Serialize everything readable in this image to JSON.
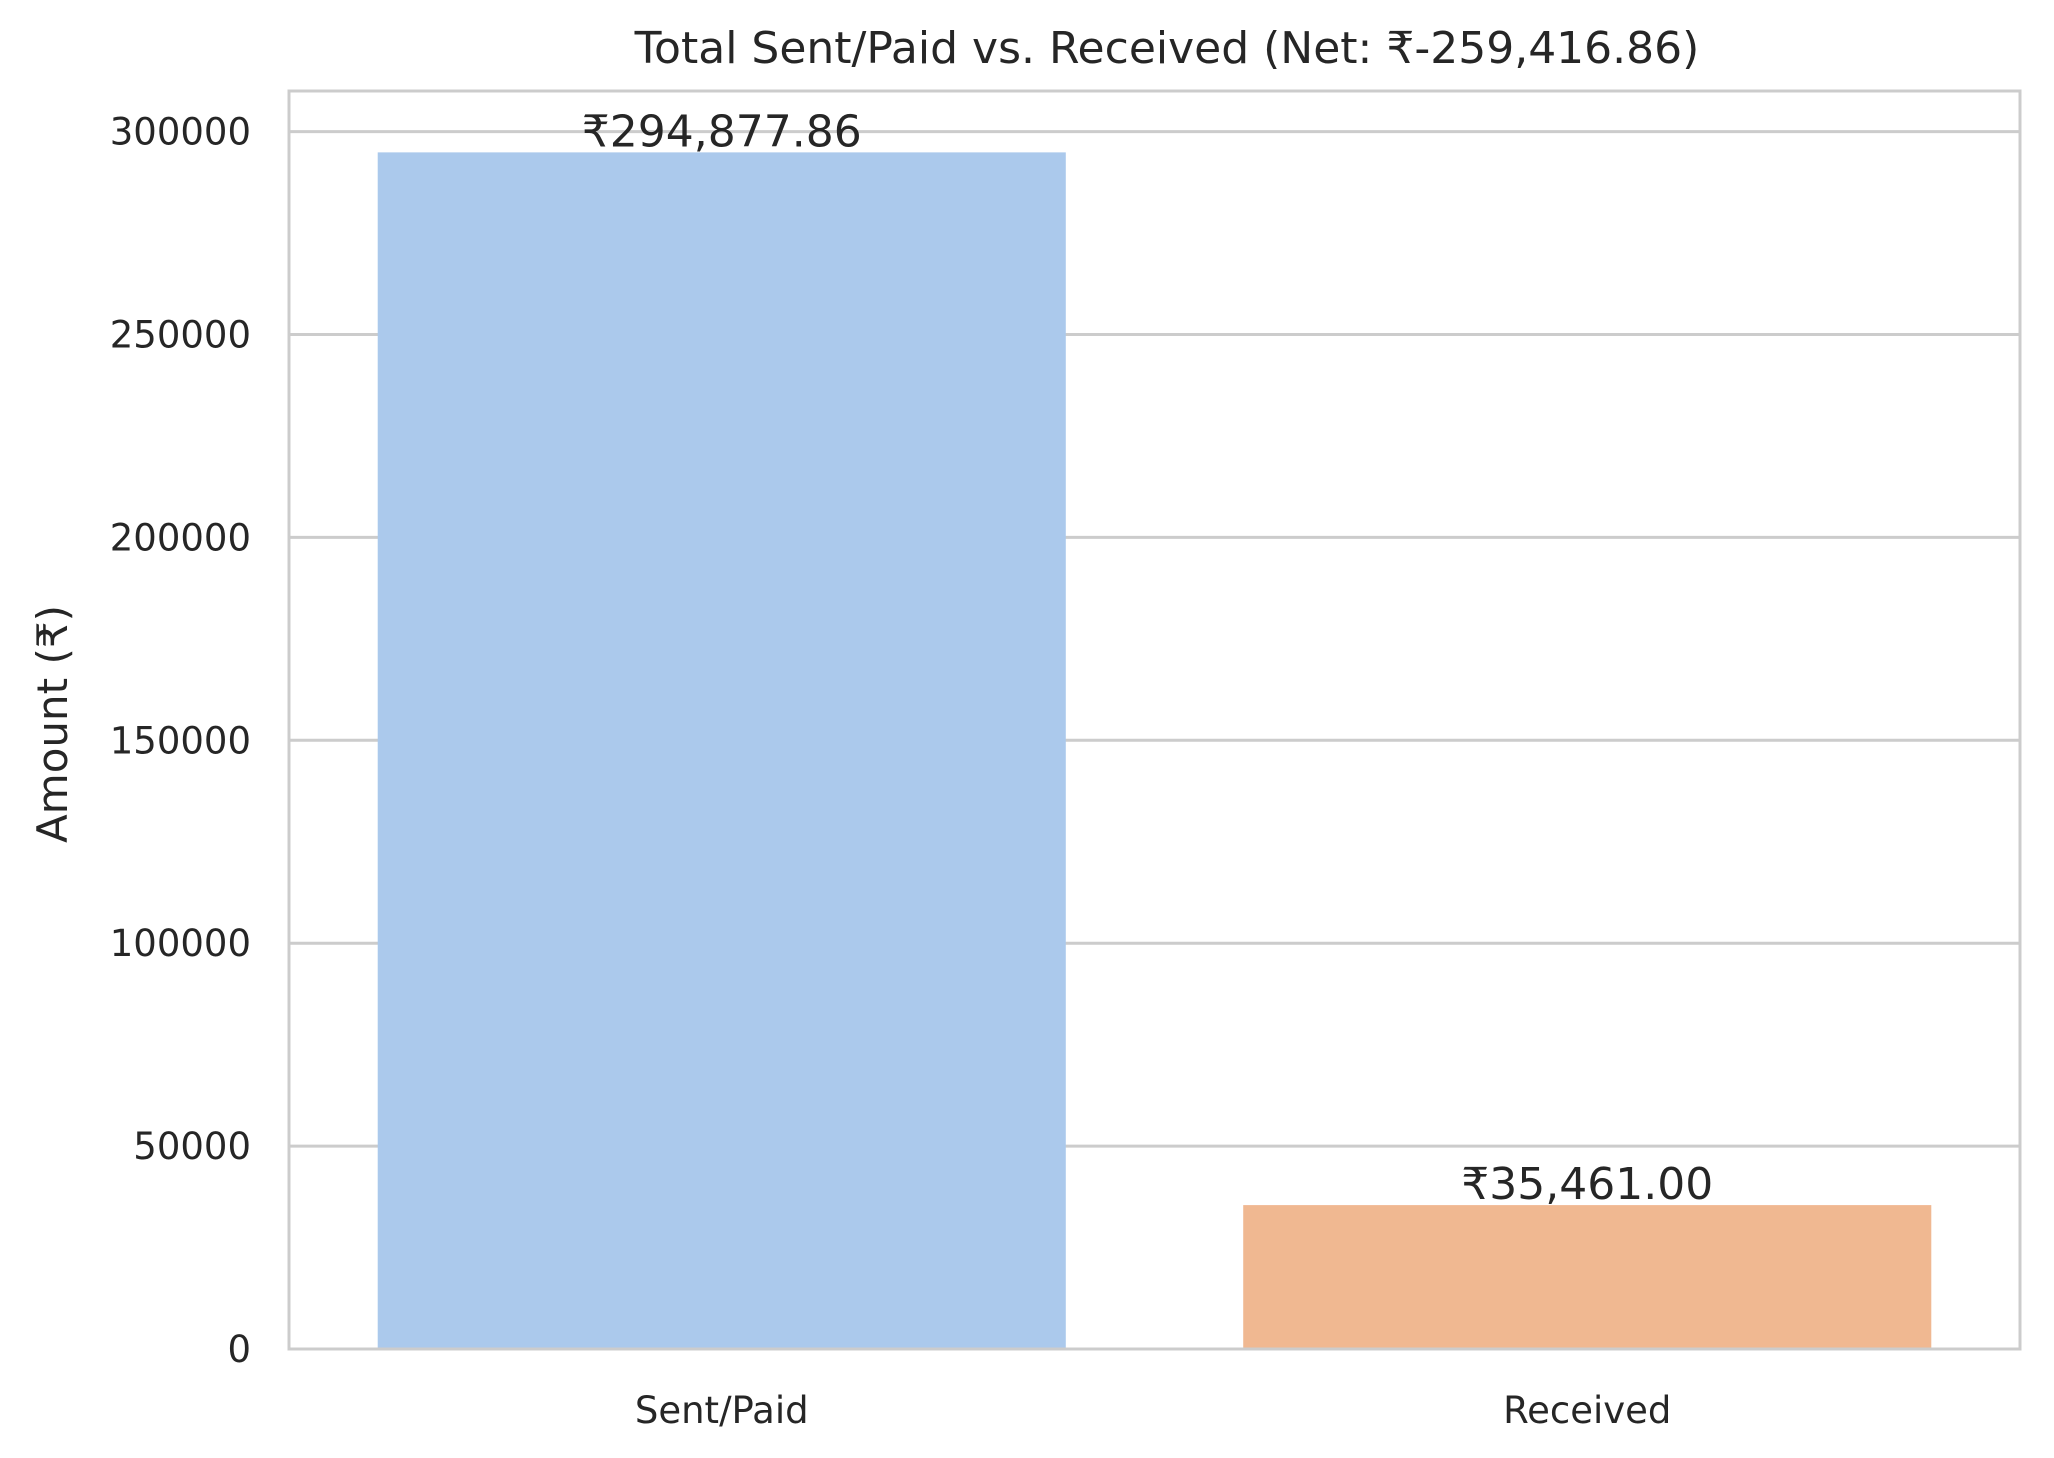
{
  "chart_data": {
    "type": "bar",
    "title": "Total Sent/Paid vs. Received (Net: ₹-259,416.86)",
    "xlabel": "",
    "ylabel": "Amount (₹)",
    "categories": [
      "Sent/Paid",
      "Received"
    ],
    "values": [
      294877.86,
      35461.0
    ],
    "data_labels": [
      "₹294,877.86",
      "₹35,461.00"
    ],
    "colors": [
      "#abc9ec",
      "#f0b891"
    ],
    "ylim": [
      0,
      310000
    ],
    "yticks": [
      0,
      50000,
      100000,
      150000,
      200000,
      250000,
      300000
    ],
    "ytick_labels": [
      "0",
      "50000",
      "100000",
      "150000",
      "200000",
      "250000",
      "300000"
    ],
    "grid": "horizontal",
    "legend": "none"
  }
}
